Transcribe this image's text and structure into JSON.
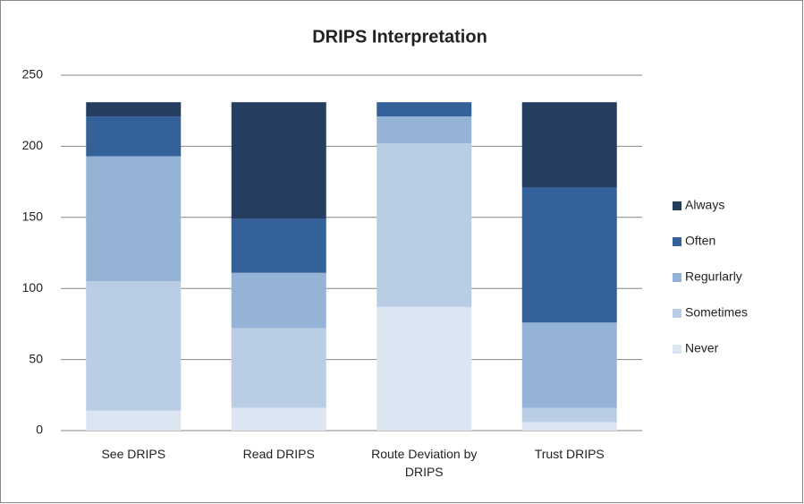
{
  "chart_data": {
    "type": "stacked_bar",
    "title": "DRIPS Interpretation",
    "categories": [
      "See DRIPS",
      "Read DRIPS",
      "Route Deviation by DRIPS",
      "Trust DRIPS"
    ],
    "series": [
      {
        "name": "Never",
        "color": "#dce6f2",
        "values": [
          14,
          16,
          87,
          6
        ]
      },
      {
        "name": "Sometimes",
        "color": "#b9cde5",
        "values": [
          91,
          56,
          115,
          10
        ]
      },
      {
        "name": "Regurlarly",
        "color": "#95b3d7",
        "values": [
          88,
          39,
          19,
          60
        ]
      },
      {
        "name": "Often",
        "color": "#35619a",
        "values": [
          28,
          38,
          10,
          95
        ]
      },
      {
        "name": "Always",
        "color": "#253d5e",
        "values": [
          10,
          82,
          0,
          60
        ]
      }
    ],
    "ylim": [
      0,
      250
    ],
    "yticks": [
      0,
      50,
      100,
      150,
      200,
      250
    ],
    "grid": true,
    "legend": "right"
  }
}
